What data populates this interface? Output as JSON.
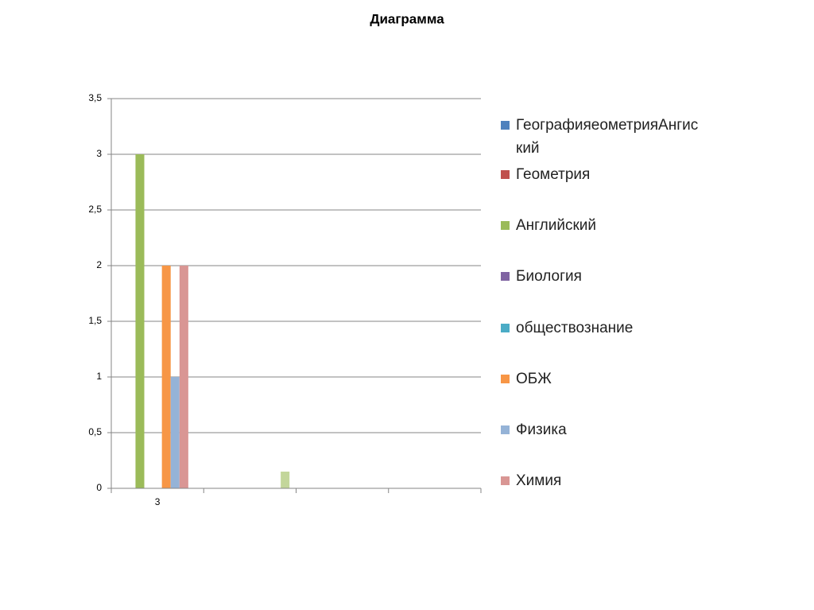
{
  "chart_data": {
    "type": "bar",
    "title": "Диаграмма",
    "categories": [
      "3",
      null,
      null,
      null
    ],
    "series": [
      {
        "name": "ГеографияеометрияАнгиский",
        "color": "#4f81bd",
        "values": [
          0,
          0,
          0,
          0
        ]
      },
      {
        "name": "Геометрия",
        "color": "#c0504d",
        "values": [
          0,
          0,
          0,
          0
        ]
      },
      {
        "name": "Английский",
        "color": "#9bbb59",
        "values": [
          3,
          0,
          0,
          0
        ]
      },
      {
        "name": "Биология",
        "color": "#8064a2",
        "values": [
          0,
          0,
          0,
          0
        ]
      },
      {
        "name": "обществознание",
        "color": "#4bacc6",
        "values": [
          0,
          0,
          0,
          0
        ]
      },
      {
        "name": "ОБЖ",
        "color": "#f79646",
        "values": [
          2,
          0,
          0,
          0
        ]
      },
      {
        "name": "Физика",
        "color": "#95b3d7",
        "values": [
          1,
          0,
          0,
          0
        ]
      },
      {
        "name": "Химия",
        "color": "#d99694",
        "values": [
          2,
          0,
          0,
          0
        ]
      },
      {
        "color": "#c3d69b",
        "values": [
          0,
          0.15,
          0,
          0
        ]
      }
    ],
    "ylim": [
      0,
      3.5
    ],
    "yticks": [
      0,
      {
        "value": 0.5,
        "label": "0,5"
      },
      1,
      {
        "value": 1.5,
        "label": "1,5"
      },
      2,
      {
        "value": 2.5,
        "label": "2,5"
      },
      3,
      {
        "value": 3.5,
        "label": "3,5"
      }
    ],
    "grid": true,
    "legend": "right"
  }
}
